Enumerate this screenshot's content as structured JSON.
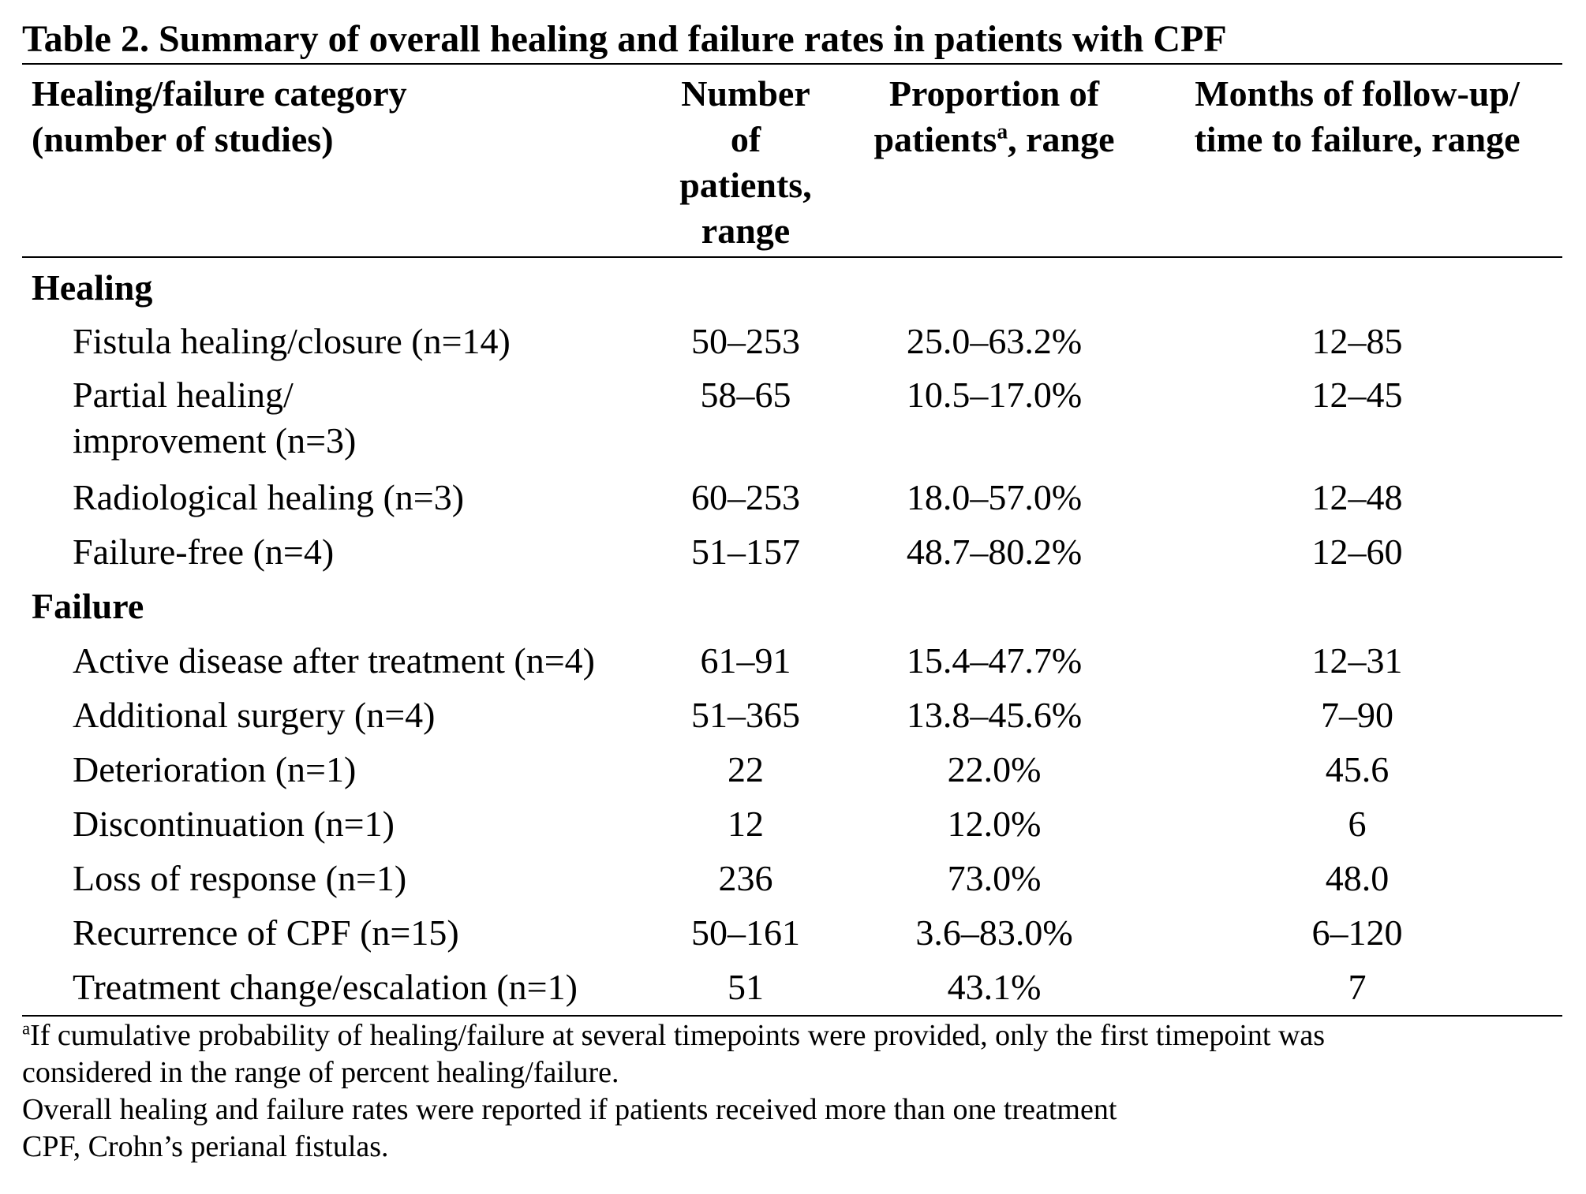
{
  "title": "Table 2. Summary of overall healing and failure rates in patients with CPF",
  "headers": {
    "category": [
      "Healing/failure category",
      "(number of studies)"
    ],
    "number": [
      "Number",
      "of",
      "patients,",
      "range"
    ],
    "proportion": [
      "Proportion of",
      "patients",
      "a",
      ", range"
    ],
    "months": [
      "Months of follow-up/",
      "time to failure, range"
    ]
  },
  "sections": [
    {
      "label": "Healing",
      "rows": [
        {
          "category": "Fistula healing/closure (n=14)",
          "number": "50–253",
          "proportion": "25.0–63.2%",
          "months": "12–85"
        },
        {
          "category_lines": [
            "Partial healing/",
            "improvement (n=3)"
          ],
          "number": "58–65",
          "proportion": "10.5–17.0%",
          "months": "12–45"
        },
        {
          "category": "Radiological healing (n=3)",
          "number": "60–253",
          "proportion": "18.0–57.0%",
          "months": "12–48"
        },
        {
          "category": "Failure-free (n=4)",
          "number": "51–157",
          "proportion": "48.7–80.2%",
          "months": "12–60"
        }
      ]
    },
    {
      "label": "Failure",
      "rows": [
        {
          "category": "Active disease after treatment (n=4)",
          "number": "61–91",
          "proportion": "15.4–47.7%",
          "months": "12–31"
        },
        {
          "category": "Additional surgery (n=4)",
          "number": "51–365",
          "proportion": "13.8–45.6%",
          "months": "7–90"
        },
        {
          "category": "Deterioration (n=1)",
          "number": "22",
          "proportion": "22.0%",
          "months": "45.6"
        },
        {
          "category": "Discontinuation (n=1)",
          "number": "12",
          "proportion": "12.0%",
          "months": "6"
        },
        {
          "category": "Loss of response (n=1)",
          "number": "236",
          "proportion": "73.0%",
          "months": "48.0"
        },
        {
          "category": "Recurrence of CPF (n=15)",
          "number": "50–161",
          "proportion": "3.6–83.0%",
          "months": "6–120"
        },
        {
          "category": "Treatment change/escalation (n=1)",
          "number": "51",
          "proportion": "43.1%",
          "months": "7"
        }
      ]
    }
  ],
  "footnotes": {
    "a_marker": "a",
    "a_text_line1": "If cumulative probability of healing/failure at several timepoints were provided, only the first timepoint was",
    "a_text_line2": "considered in the range of percent healing/failure.",
    "note2": "Overall healing and failure rates were reported if patients received more than one treatment",
    "note3": "CPF, Crohn’s perianal fistulas."
  }
}
